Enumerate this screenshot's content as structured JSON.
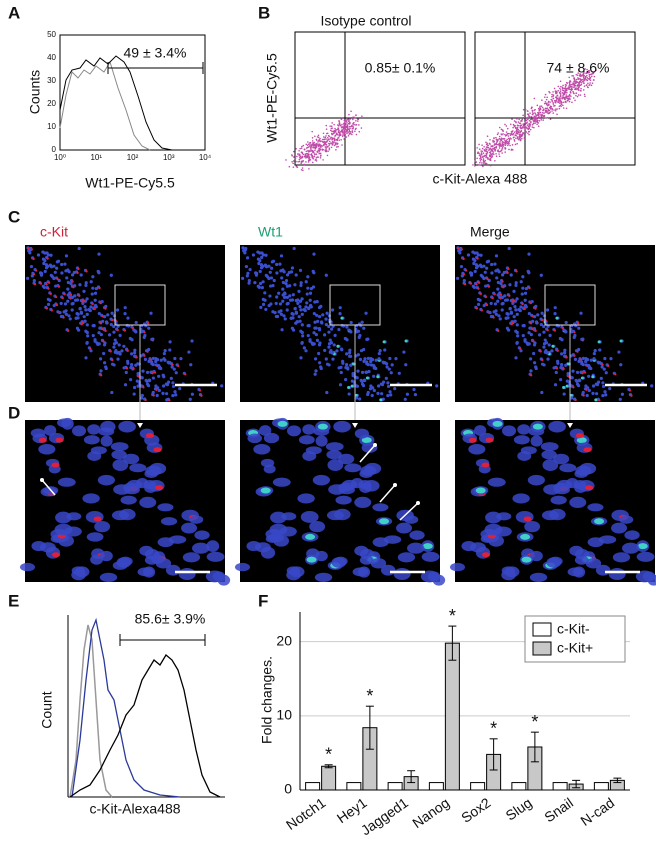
{
  "panels": {
    "A": {
      "letter": "A",
      "y_label": "Counts",
      "x_label": "Wt1-PE-Cy5.5",
      "annotation": "49 ± 3.4%",
      "xticks": [
        "10⁰",
        "10¹",
        "10²",
        "10³",
        "10⁴"
      ],
      "yticks": [
        0,
        10,
        20,
        30,
        40,
        50
      ]
    },
    "B": {
      "letter": "B",
      "title": "Isotype control",
      "y_label": "Wt1-PE-Cy5.5",
      "x_label": "c-Kit-Alexa 488",
      "annotations": [
        "0.85± 0.1%",
        "74 ± 8.6%"
      ]
    },
    "C": {
      "letter": "C",
      "labels": [
        "c-Kit",
        "Wt1",
        "Merge"
      ]
    },
    "D": {
      "letter": "D"
    },
    "E": {
      "letter": "E",
      "y_label": "Count",
      "x_label": "c-Kit-Alexa488",
      "annotation": "85.6± 3.9%"
    },
    "F": {
      "letter": "F"
    }
  },
  "chart_data": {
    "type": "bar",
    "y_label": "Fold changes.",
    "categories": [
      "Notch1",
      "Hey1",
      "Jagged1",
      "Nanog",
      "Sox2",
      "Slug",
      "Snail",
      "N-cad"
    ],
    "series": [
      {
        "name": "c-Kit-",
        "color": "#ffffff",
        "values": [
          1,
          1,
          1,
          1,
          1,
          1,
          1,
          1
        ]
      },
      {
        "name": "c-Kit+",
        "color": "#c8c8c8",
        "values": [
          3.2,
          8.4,
          1.8,
          19.8,
          4.8,
          5.8,
          0.8,
          1.3
        ],
        "errors": [
          0.2,
          2.9,
          0.8,
          2.3,
          2.1,
          2.0,
          0.5,
          0.3
        ]
      }
    ],
    "significance": [
      "*",
      "*",
      null,
      "*",
      "*",
      "*",
      null,
      null
    ],
    "ylim": [
      0,
      24
    ],
    "yticks": [
      0,
      10,
      20
    ],
    "grid": true,
    "legend": "top-right"
  }
}
